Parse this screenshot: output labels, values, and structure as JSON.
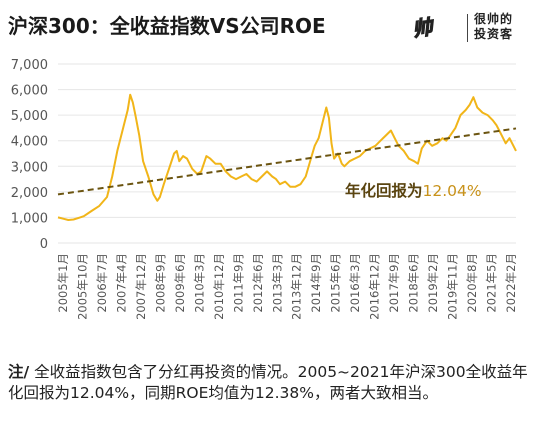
{
  "header": {
    "title": "沪深300：全收益指数VS公司ROE",
    "brand_logo": "帅",
    "brand_line1": "很帅的",
    "brand_line2": "投资客"
  },
  "annotation": {
    "label": "年化回报为",
    "value": "12.04%"
  },
  "note": {
    "prefix": "注/",
    "text": "全收益指数包含了分红再投资的情况。2005~2021年沪深300全收益年化回报为12.04%，同期ROE均值为12.38%，两者大致相当。"
  },
  "colors": {
    "line": "#f1b519",
    "trend": "#6b5410",
    "annotation_label": "#5a4410",
    "annotation_value": "#c8921a",
    "grid": "#e6e6e6",
    "axis_text": "#555555"
  },
  "chart_data": {
    "type": "line",
    "title": "沪深300：全收益指数VS公司ROE",
    "ylim": [
      0,
      7000
    ],
    "y_ticks": [
      0,
      1000,
      2000,
      3000,
      4000,
      5000,
      6000,
      7000
    ],
    "y_tick_labels": [
      "0",
      "1,000",
      "2,000",
      "3,000",
      "4,000",
      "5,000",
      "6,000",
      "7,000"
    ],
    "x_tick_labels": [
      "2005年1月",
      "2005年10月",
      "2006年7月",
      "2007年4月",
      "2007年12月",
      "2008年9月",
      "2009年6月",
      "2010年3月",
      "2010年12月",
      "2011年9月",
      "2012年6月",
      "2013年3月",
      "2013年12月",
      "2014年9月",
      "2015年6月",
      "2016年3月",
      "2016年12月",
      "2017年9月",
      "2018年6月",
      "2019年2月",
      "2019年11月",
      "2020年8月",
      "2021年5月",
      "2022年2月"
    ],
    "grid": true,
    "legend": "none",
    "series": [
      {
        "name": "沪深300全收益指数",
        "x": [
          2005.0,
          2005.2,
          2005.4,
          2005.6,
          2005.8,
          2006.0,
          2006.3,
          2006.6,
          2006.9,
          2007.1,
          2007.3,
          2007.5,
          2007.7,
          2007.8,
          2007.9,
          2008.0,
          2008.15,
          2008.3,
          2008.5,
          2008.7,
          2008.85,
          2008.95,
          2009.1,
          2009.3,
          2009.5,
          2009.6,
          2009.7,
          2009.85,
          2010.0,
          2010.2,
          2010.4,
          2010.55,
          2010.75,
          2010.9,
          2011.1,
          2011.3,
          2011.5,
          2011.7,
          2011.9,
          2012.1,
          2012.3,
          2012.5,
          2012.7,
          2012.9,
          2013.1,
          2013.3,
          2013.45,
          2013.6,
          2013.8,
          2014.0,
          2014.2,
          2014.4,
          2014.6,
          2014.8,
          2014.95,
          2015.1,
          2015.25,
          2015.4,
          2015.5,
          2015.6,
          2015.7,
          2015.85,
          2016.0,
          2016.1,
          2016.3,
          2016.5,
          2016.7,
          2016.9,
          2017.1,
          2017.3,
          2017.5,
          2017.7,
          2017.9,
          2018.05,
          2018.2,
          2018.4,
          2018.6,
          2018.8,
          2018.95,
          2019.1,
          2019.3,
          2019.5,
          2019.7,
          2019.9,
          2020.05,
          2020.2,
          2020.4,
          2020.6,
          2020.8,
          2020.95,
          2021.1,
          2021.25,
          2021.45,
          2021.65,
          2021.85,
          2022.0,
          2022.2,
          2022.35,
          2022.5,
          2022.65,
          2022.75
        ],
        "y": [
          1000,
          950,
          900,
          920,
          980,
          1050,
          1250,
          1450,
          1800,
          2600,
          3600,
          4400,
          5200,
          5800,
          5500,
          5000,
          4200,
          3200,
          2600,
          1900,
          1650,
          1800,
          2300,
          2900,
          3500,
          3600,
          3200,
          3400,
          3300,
          2900,
          2700,
          2800,
          3400,
          3300,
          3100,
          3100,
          2800,
          2600,
          2500,
          2600,
          2700,
          2500,
          2400,
          2600,
          2800,
          2600,
          2500,
          2300,
          2400,
          2200,
          2200,
          2300,
          2600,
          3300,
          3800,
          4100,
          4700,
          5300,
          4900,
          3900,
          3300,
          3500,
          3100,
          3000,
          3200,
          3300,
          3400,
          3600,
          3700,
          3800,
          4000,
          4200,
          4400,
          4100,
          3800,
          3600,
          3300,
          3200,
          3100,
          3700,
          4000,
          3800,
          3900,
          4100,
          4000,
          4200,
          4500,
          5000,
          5200,
          5400,
          5700,
          5300,
          5100,
          5000,
          4800,
          4600,
          4200,
          3900,
          4100,
          3800,
          3600
        ]
      },
      {
        "name": "",
        "type": "trend",
        "x": [
          2005.0,
          2022.75
        ],
        "y": [
          1900,
          4480
        ]
      }
    ],
    "annotations": [
      "年化回报为12.04%"
    ]
  }
}
